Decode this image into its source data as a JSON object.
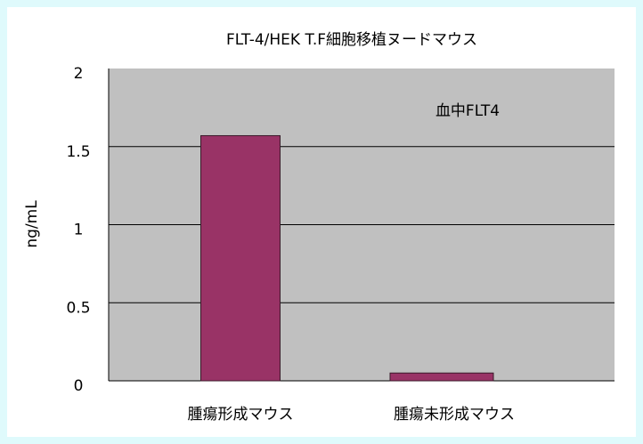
{
  "chart_data": {
    "type": "bar",
    "title": "FLT-4/HEK T.F細胞移植ヌードマウス",
    "ylabel": "ng/mL",
    "annotation": "血中FLT4",
    "categories": [
      "腫瘍形成マウス",
      "腫瘍未形成マウス"
    ],
    "values": [
      1.57,
      0.05
    ],
    "color": "#993366",
    "ylim": [
      0,
      2
    ],
    "yticks": [
      0,
      0.5,
      1,
      1.5,
      2
    ],
    "grid": true
  }
}
